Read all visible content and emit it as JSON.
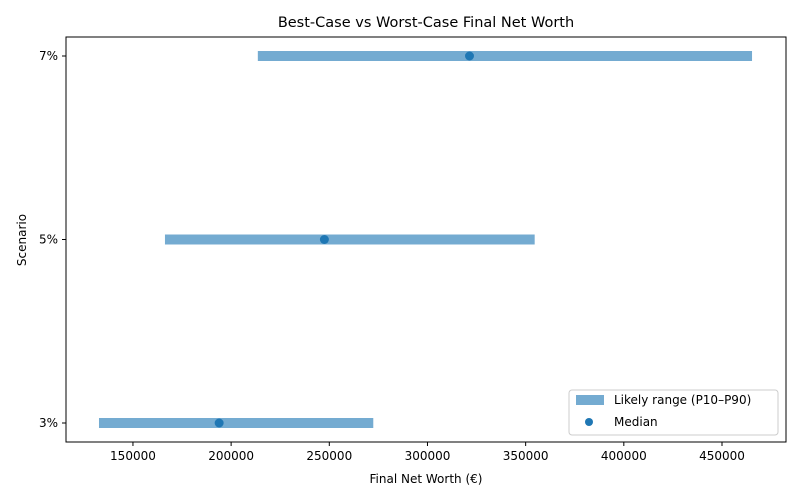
{
  "chart_data": {
    "type": "bar",
    "subtype": "horizontal-range-with-median",
    "title": "Best-Case vs Worst-Case Final Net Worth",
    "xlabel": "Final Net Worth (€)",
    "ylabel": "Scenario",
    "categories": [
      "3%",
      "5%",
      "7%"
    ],
    "series": [
      {
        "name": "Likely range (P10–P90)",
        "kind": "range",
        "low": [
          132700,
          166300,
          213600
        ],
        "high": [
          272400,
          354600,
          465300
        ],
        "color": "#74abd1"
      },
      {
        "name": "Median",
        "kind": "point",
        "values": [
          193900,
          247500,
          321400
        ],
        "color": "#1f77b4"
      }
    ],
    "xlim": [
      115900,
      482600
    ],
    "xticks": [
      150000,
      200000,
      250000,
      300000,
      350000,
      400000,
      450000
    ],
    "xtick_labels": [
      "150000",
      "200000",
      "250000",
      "300000",
      "350000",
      "400000",
      "450000"
    ],
    "grid": false,
    "legend_position": "lower right"
  },
  "legend": {
    "items": [
      {
        "label": "Likely range (P10–P90)",
        "swatch": "bar",
        "color": "#74abd1"
      },
      {
        "label": "Median",
        "swatch": "dot",
        "color": "#1f77b4"
      }
    ]
  }
}
